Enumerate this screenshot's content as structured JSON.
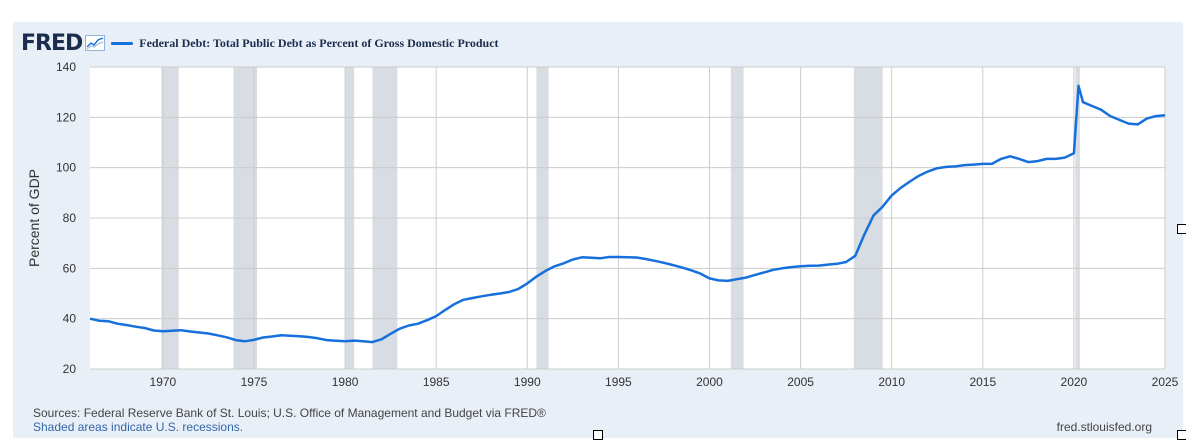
{
  "header": {
    "logo_text": "FRED",
    "series_title": "Federal Debt: Total Public Debt as Percent of Gross Domestic Product"
  },
  "footer": {
    "sources": "Sources: Federal Reserve Bank of St. Louis; U.S. Office of Management and Budget via FRED®",
    "recession_note": "Shaded areas indicate U.S. recessions.",
    "site": "fred.stlouisfed.org"
  },
  "colors": {
    "line": "#1670dc",
    "recession": "#d8dce3",
    "panel": "#e9eff7",
    "grid": "#cccccc"
  },
  "chart_data": {
    "type": "line",
    "ylabel": "Percent of GDP",
    "xlim": [
      1966.0,
      2025.0
    ],
    "ylim": [
      20,
      140
    ],
    "x_ticks": [
      1970,
      1975,
      1980,
      1985,
      1990,
      1995,
      2000,
      2005,
      2010,
      2015,
      2020,
      2025
    ],
    "y_ticks": [
      20,
      40,
      60,
      80,
      100,
      120,
      140
    ],
    "grid": true,
    "recessions": [
      [
        1969.92,
        1970.87
      ],
      [
        1973.87,
        1975.17
      ],
      [
        1980.0,
        1980.5
      ],
      [
        1981.5,
        1982.87
      ],
      [
        1990.5,
        1991.17
      ],
      [
        2001.17,
        2001.87
      ],
      [
        2007.92,
        2009.5
      ],
      [
        2020.08,
        2020.33
      ]
    ],
    "series": [
      {
        "name": "Federal Debt: Total Public Debt as Percent of Gross Domestic Product",
        "x": [
          1966.0,
          1966.5,
          1967.0,
          1967.5,
          1968.0,
          1968.5,
          1969.0,
          1969.5,
          1970.0,
          1970.5,
          1971.0,
          1971.5,
          1972.0,
          1972.5,
          1973.0,
          1973.5,
          1974.0,
          1974.5,
          1975.0,
          1975.5,
          1976.0,
          1976.5,
          1977.0,
          1977.5,
          1978.0,
          1978.5,
          1979.0,
          1979.5,
          1980.0,
          1980.5,
          1981.0,
          1981.5,
          1982.0,
          1982.5,
          1983.0,
          1983.5,
          1984.0,
          1984.5,
          1985.0,
          1985.5,
          1986.0,
          1986.5,
          1987.0,
          1987.5,
          1988.0,
          1988.5,
          1989.0,
          1989.5,
          1990.0,
          1990.5,
          1991.0,
          1991.5,
          1992.0,
          1992.5,
          1993.0,
          1993.5,
          1994.0,
          1994.5,
          1995.0,
          1995.5,
          1996.0,
          1996.5,
          1997.0,
          1997.5,
          1998.0,
          1998.5,
          1999.0,
          1999.5,
          2000.0,
          2000.5,
          2001.0,
          2001.5,
          2002.0,
          2002.5,
          2003.0,
          2003.5,
          2004.0,
          2004.5,
          2005.0,
          2005.5,
          2006.0,
          2006.5,
          2007.0,
          2007.5,
          2008.0,
          2008.5,
          2009.0,
          2009.5,
          2010.0,
          2010.5,
          2011.0,
          2011.5,
          2012.0,
          2012.5,
          2013.0,
          2013.5,
          2014.0,
          2014.5,
          2015.0,
          2015.5,
          2016.0,
          2016.5,
          2017.0,
          2017.5,
          2018.0,
          2018.5,
          2019.0,
          2019.5,
          2020.0,
          2020.25,
          2020.5,
          2021.0,
          2021.5,
          2022.0,
          2022.5,
          2023.0,
          2023.5,
          2024.0,
          2024.5,
          2025.0
        ],
        "values": [
          40.0,
          39.2,
          39.0,
          38.0,
          37.5,
          36.8,
          36.3,
          35.3,
          35.0,
          35.2,
          35.4,
          34.9,
          34.5,
          34.1,
          33.4,
          32.6,
          31.5,
          31.0,
          31.6,
          32.5,
          32.9,
          33.4,
          33.2,
          33.0,
          32.7,
          32.2,
          31.5,
          31.2,
          31.0,
          31.3,
          31.0,
          30.7,
          31.8,
          34.0,
          36.0,
          37.3,
          38.0,
          39.4,
          41.0,
          43.5,
          45.8,
          47.5,
          48.2,
          48.9,
          49.5,
          50.0,
          50.6,
          51.8,
          54.0,
          56.7,
          59.0,
          60.8,
          62.0,
          63.5,
          64.4,
          64.2,
          64.0,
          64.5,
          64.5,
          64.4,
          64.3,
          63.7,
          63.0,
          62.2,
          61.3,
          60.3,
          59.2,
          57.9,
          56.0,
          55.2,
          55.0,
          55.7,
          56.3,
          57.4,
          58.4,
          59.4,
          60.0,
          60.5,
          60.8,
          61.0,
          61.1,
          61.5,
          61.8,
          62.5,
          65.0,
          73.5,
          81.0,
          84.5,
          89.0,
          92.0,
          94.5,
          96.8,
          98.5,
          99.8,
          100.3,
          100.5,
          101.0,
          101.2,
          101.5,
          101.5,
          103.5,
          104.5,
          103.5,
          102.2,
          102.6,
          103.5,
          103.5,
          104.0,
          105.7,
          132.5,
          126.0,
          124.5,
          123.0,
          120.5,
          119.0,
          117.5,
          117.2,
          119.5,
          120.5,
          120.8
        ]
      }
    ]
  }
}
